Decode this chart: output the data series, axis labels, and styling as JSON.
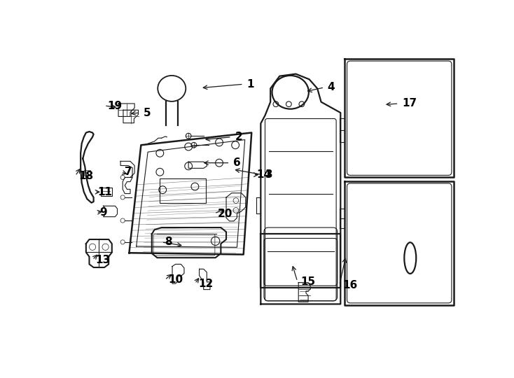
{
  "background_color": "#ffffff",
  "line_color": "#1a1a1a",
  "label_color": "#000000",
  "fig_width": 7.34,
  "fig_height": 5.4,
  "dpi": 100
}
